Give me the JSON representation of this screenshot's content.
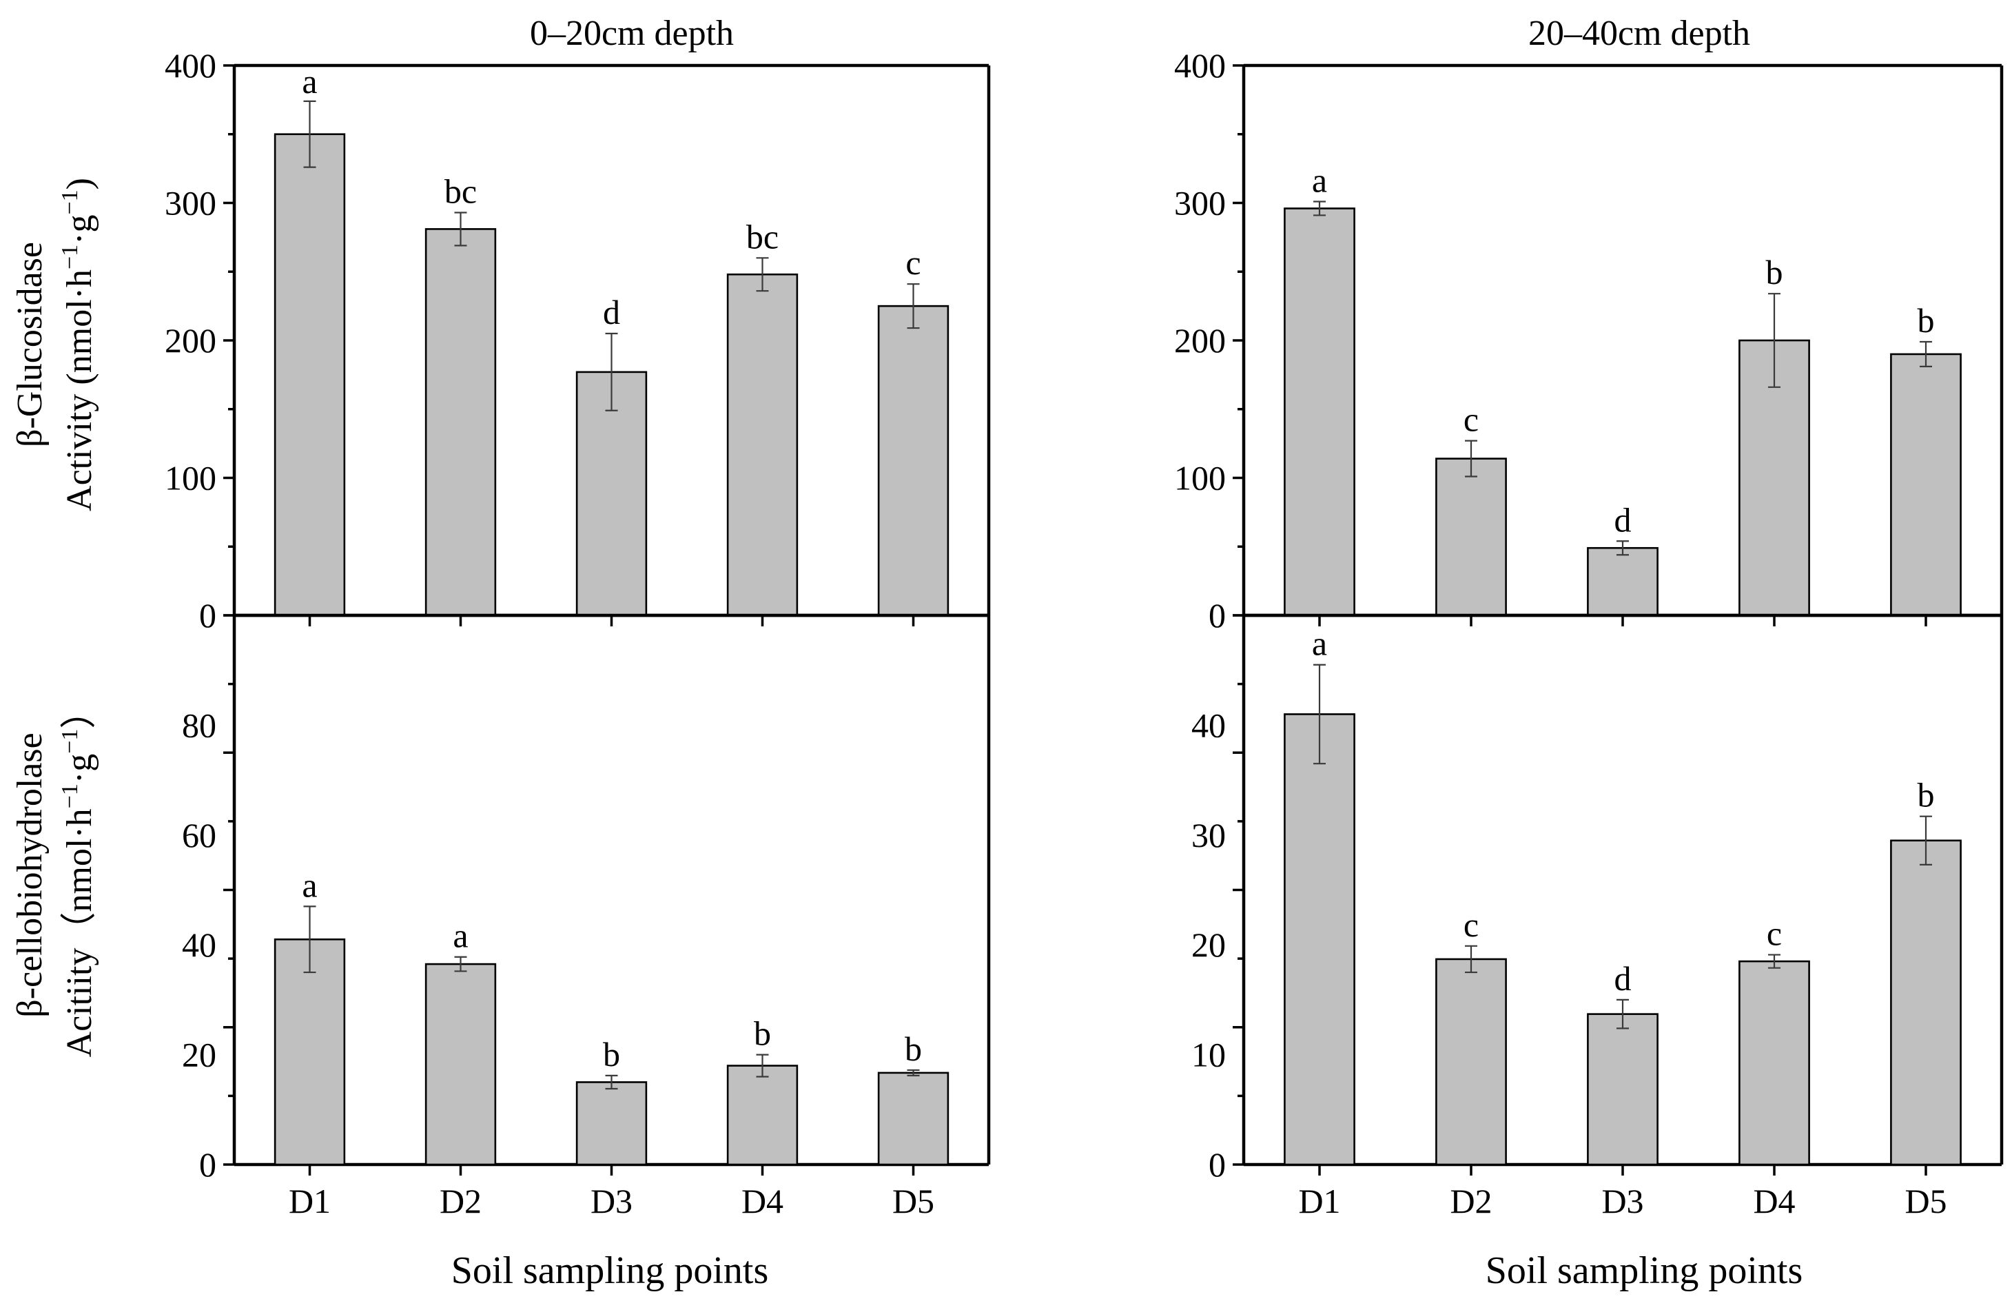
{
  "chart_data": [
    {
      "type": "bar",
      "title": "0–20cm depth",
      "xlabel": "",
      "ylabel": "β-Glucosidase Activity (nmol·h⁻¹·g⁻¹)",
      "categories": [
        "D1",
        "D2",
        "D3",
        "D4",
        "D5"
      ],
      "values": [
        350,
        281,
        177,
        248,
        225
      ],
      "errors": [
        24,
        12,
        28,
        12,
        16
      ],
      "significance": [
        "a",
        "bc",
        "d",
        "bc",
        "c"
      ],
      "ylim": [
        0,
        400
      ],
      "yticks": [
        "0",
        "100",
        "200",
        "300",
        "400"
      ]
    },
    {
      "type": "bar",
      "title": "20–40cm depth",
      "xlabel": "",
      "ylabel": "",
      "categories": [
        "D1",
        "D2",
        "D3",
        "D4",
        "D5"
      ],
      "values": [
        296,
        114,
        49,
        200,
        190
      ],
      "errors": [
        5,
        13,
        5,
        34,
        9
      ],
      "significance": [
        "a",
        "c",
        "d",
        "b",
        "b"
      ],
      "ylim": [
        0,
        400
      ],
      "yticks": [
        "0",
        "100",
        "200",
        "300",
        "400"
      ]
    },
    {
      "type": "bar",
      "title": "",
      "xlabel": "Soil sampling points",
      "ylabel": "β-cellobiohydrolase Acitiity（nmol·h⁻¹·g⁻¹）",
      "categories": [
        "D1",
        "D2",
        "D3",
        "D4",
        "D5"
      ],
      "values": [
        41,
        36.5,
        15,
        18,
        16.7
      ],
      "errors": [
        6,
        1.3,
        1.2,
        2,
        0.5
      ],
      "significance": [
        "a",
        "a",
        "b",
        "b",
        "b"
      ],
      "ylim": [
        0,
        100
      ],
      "yticks": [
        "0",
        "20",
        "40",
        "60",
        "80"
      ]
    },
    {
      "type": "bar",
      "title": "",
      "xlabel": "Soil sampling points",
      "ylabel": "",
      "categories": [
        "D1",
        "D2",
        "D3",
        "D4",
        "D5"
      ],
      "values": [
        41,
        18.7,
        13.7,
        18.5,
        29.5
      ],
      "errors": [
        4.5,
        1.2,
        1.3,
        0.6,
        2.2
      ],
      "significance": [
        "a",
        "c",
        "d",
        "c",
        "b"
      ],
      "ylim": [
        0,
        50
      ],
      "yticks": [
        "0",
        "10",
        "20",
        "30",
        "40"
      ]
    }
  ],
  "labels": {
    "top_left_title": "0–20cm depth",
    "top_right_title": "20–40cm depth",
    "xlabel_left": "Soil sampling points",
    "xlabel_right": "Soil sampling points",
    "ylabel_top_line1": "β-Glucosidase",
    "ylabel_top_line2_prefix": "Activity (nmol·h",
    "ylabel_top_sup1": "−1",
    "ylabel_top_mid": "·g",
    "ylabel_top_sup2": "−1",
    "ylabel_top_suffix": ")",
    "ylabel_bottom_line1": "β-cellobiohydrolase",
    "ylabel_bottom_line2_prefix": "Acitiity（nmol·h",
    "ylabel_bottom_sup1": "−1",
    "ylabel_bottom_mid": "·g",
    "ylabel_bottom_sup2": "−1",
    "ylabel_bottom_suffix": "）"
  }
}
